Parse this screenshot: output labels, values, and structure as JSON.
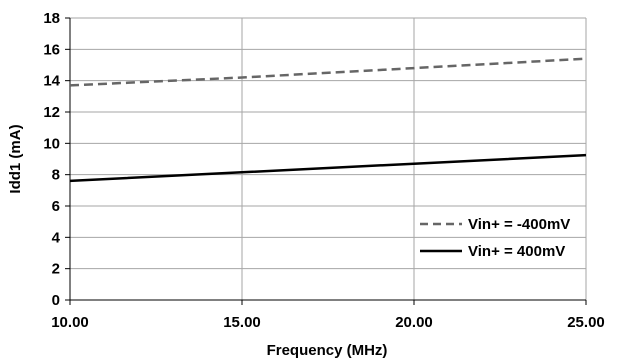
{
  "chart_data": {
    "type": "line",
    "title": "",
    "xlabel": "Frequency (MHz)",
    "ylabel": "Idd1 (mA)",
    "xlim": [
      10,
      25
    ],
    "ylim": [
      0,
      18
    ],
    "x_ticks": [
      "10.00",
      "15.00",
      "20.00",
      "25.00"
    ],
    "y_ticks": [
      "0",
      "2",
      "4",
      "6",
      "8",
      "10",
      "12",
      "14",
      "16",
      "18"
    ],
    "grid": true,
    "legend_position": "bottom-right",
    "series": [
      {
        "name": "Vin+ = -400mV",
        "color": "#666666",
        "style": "dashed",
        "x": [
          10,
          15,
          20,
          25
        ],
        "y": [
          13.7,
          14.2,
          14.8,
          15.4
        ]
      },
      {
        "name": "Vin+ = 400mV",
        "color": "#000000",
        "style": "solid",
        "x": [
          10,
          15,
          20,
          25
        ],
        "y": [
          7.6,
          8.15,
          8.7,
          9.25
        ]
      }
    ]
  }
}
